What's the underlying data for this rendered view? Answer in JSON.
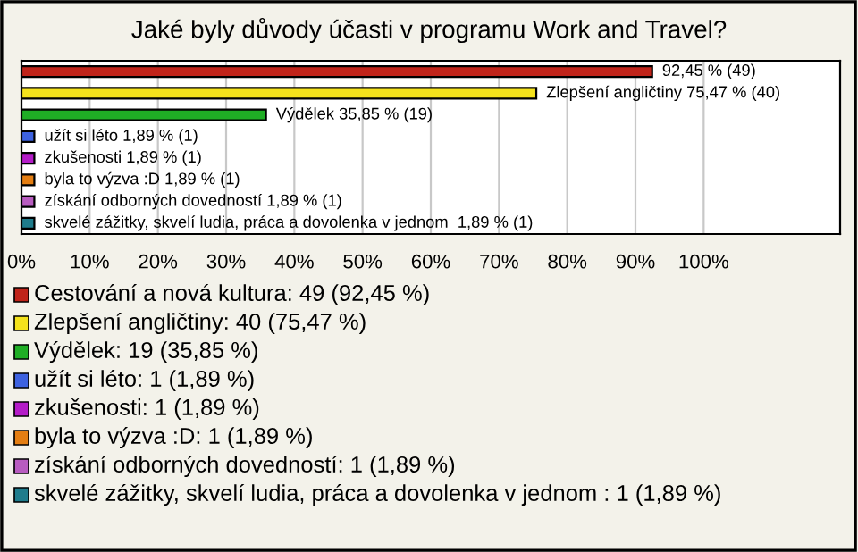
{
  "chart_data": {
    "type": "bar",
    "orientation": "horizontal",
    "title": "Jaké byly důvody účasti v programu Work and Travel?",
    "categories": [
      null,
      null,
      null,
      null,
      null,
      null,
      null,
      null
    ],
    "values": [
      92.45,
      75.47,
      35.85,
      1.89,
      1.89,
      1.89,
      1.89,
      1.89
    ],
    "colors": [
      "#c0241a",
      "#f4e21c",
      "#1fae25",
      "#3d62e0",
      "#b41cc8",
      "#e47e12",
      "#b85cc0",
      "#1f7c8c"
    ],
    "value_labels": [
      "92,45 % (49)",
      "Zlepšení angličtiny 75,47 % (40)",
      "Výdělek 35,85 % (19)",
      "užít si léto 1,89 % (1)",
      "zkušenosti 1,89 % (1)",
      "byla to výzva :D 1,89 % (1)",
      "získání odborných dovedností 1,89 % (1)",
      "skvelé zážitky, skvelí ludia, práca a dovolenka v jednom  1,89 % (1)"
    ],
    "xlim": [
      0,
      120
    ],
    "xticks": [
      {
        "value": 0,
        "label": "0%"
      },
      {
        "value": 10,
        "label": "10%"
      },
      {
        "value": 20,
        "label": "20%"
      },
      {
        "value": 30,
        "label": "30%"
      },
      {
        "value": 40,
        "label": "40%"
      },
      {
        "value": 50,
        "label": "50%"
      },
      {
        "value": 60,
        "label": "60%"
      },
      {
        "value": 70,
        "label": "70%"
      },
      {
        "value": 80,
        "label": "80%"
      },
      {
        "value": 90,
        "label": "90%"
      },
      {
        "value": 100,
        "label": "100%"
      }
    ],
    "grid": "x",
    "tick_labels": "x",
    "annotations": [
      "Cestování a nová kultura: 49 (92,45 %)",
      "Zlepšení angličtiny: 40 (75,47 %)",
      "Výdělek: 19 (35,85 %)",
      "užít si léto: 1 (1,89 %)",
      "zkušenosti: 1 (1,89 %)",
      "byla to výzva :D: 1 (1,89 %)",
      "získání odborných dovedností: 1 (1,89 %)",
      "skvelé zážitky, skvelí ludia, práca a dovolenka v jednom : 1 (1,89 %)"
    ]
  }
}
